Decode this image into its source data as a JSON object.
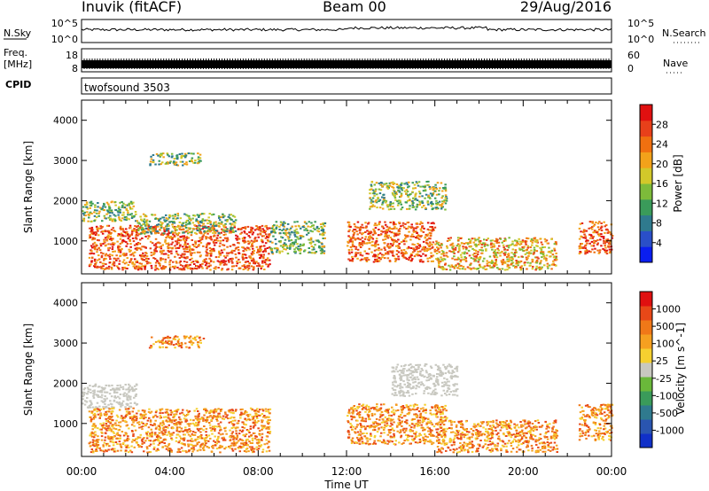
{
  "header": {
    "site": "Inuvik (fitACF)",
    "beam": "Beam 00",
    "date": "29/Aug/2016"
  },
  "noise_panel": {
    "left_label": "N.Sky",
    "right_label": "N.Search",
    "left_ticks": [
      "10^5",
      "10^0"
    ],
    "right_ticks": [
      "10^5",
      "10^0"
    ]
  },
  "freq_panel": {
    "left_label_1": "Freq.",
    "left_label_2": "[MHz]",
    "left_ticks": [
      "18",
      "8"
    ],
    "right_ticks": [
      "60",
      "0"
    ],
    "right_label": "Nave"
  },
  "cpid": {
    "label": "CPID",
    "value": "twofsound  3503"
  },
  "x_axis": {
    "label": "Time UT",
    "ticks": [
      "00:00",
      "04:00",
      "08:00",
      "12:00",
      "16:00",
      "20:00",
      "00:00"
    ]
  },
  "chart_data": [
    {
      "type": "heatmap",
      "title": "",
      "ylabel": "Slant Range [km]",
      "yticks": [
        "4000",
        "3000",
        "2000",
        "1000"
      ],
      "xlim_hours": [
        0,
        24
      ],
      "ylim_km": [
        180,
        4500
      ],
      "colorbar": {
        "label": "Power [dB]",
        "ticks": [
          "28",
          "24",
          "20",
          "16",
          "12",
          "8",
          "4"
        ],
        "colors": [
          "#0a1ef0",
          "#2a4fc8",
          "#2f7a8e",
          "#3a9b5a",
          "#7dbb3a",
          "#d2c82a",
          "#f2a21a",
          "#f07010",
          "#e8401a",
          "#e01010"
        ]
      },
      "echo_regions": [
        {
          "time": [
            0.0,
            2.5
          ],
          "range_km": [
            1500,
            2000
          ],
          "level": "medium"
        },
        {
          "time": [
            0.3,
            8.5
          ],
          "range_km": [
            300,
            1400
          ],
          "level": "high"
        },
        {
          "time": [
            2.5,
            7.0
          ],
          "range_km": [
            1200,
            1700
          ],
          "level": "medium"
        },
        {
          "time": [
            3.0,
            5.5
          ],
          "range_km": [
            2900,
            3200
          ],
          "level": "medium"
        },
        {
          "time": [
            8.5,
            11.0
          ],
          "range_km": [
            700,
            1500
          ],
          "level": "medium"
        },
        {
          "time": [
            12.0,
            16.0
          ],
          "range_km": [
            500,
            1500
          ],
          "level": "high"
        },
        {
          "time": [
            13.0,
            16.5
          ],
          "range_km": [
            1800,
            2500
          ],
          "level": "medium"
        },
        {
          "time": [
            16.0,
            21.5
          ],
          "range_km": [
            300,
            1100
          ],
          "level": "medium-high"
        },
        {
          "time": [
            22.5,
            24.0
          ],
          "range_km": [
            700,
            1500
          ],
          "level": "high"
        }
      ]
    },
    {
      "type": "heatmap",
      "title": "",
      "ylabel": "Slant Range [km]",
      "yticks": [
        "4000",
        "3000",
        "2000",
        "1000"
      ],
      "xlim_hours": [
        0,
        24
      ],
      "ylim_km": [
        180,
        4500
      ],
      "colorbar": {
        "label": "Velocity [m s^-1]",
        "ticks": [
          "1000",
          "500",
          "100",
          "25",
          "-25",
          "-100",
          "-500",
          "-1000"
        ],
        "colors": [
          "#1030c8",
          "#2a55b0",
          "#2f7a8e",
          "#3a9b5a",
          "#6ab83a",
          "#c8c8c0",
          "#f5d030",
          "#f5a020",
          "#f07818",
          "#e84818",
          "#e01010"
        ]
      },
      "echo_regions": [
        {
          "time": [
            0.0,
            2.5
          ],
          "range_km": [
            1400,
            2000
          ],
          "level": "ground-scatter"
        },
        {
          "time": [
            0.3,
            8.5
          ],
          "range_km": [
            300,
            1400
          ],
          "level": "negative"
        },
        {
          "time": [
            3.0,
            5.5
          ],
          "range_km": [
            2900,
            3200
          ],
          "level": "negative"
        },
        {
          "time": [
            12.0,
            16.5
          ],
          "range_km": [
            500,
            1500
          ],
          "level": "negative"
        },
        {
          "time": [
            14.0,
            17.0
          ],
          "range_km": [
            1700,
            2500
          ],
          "level": "ground-scatter"
        },
        {
          "time": [
            16.0,
            21.5
          ],
          "range_km": [
            300,
            1100
          ],
          "level": "negative"
        },
        {
          "time": [
            22.5,
            24.0
          ],
          "range_km": [
            600,
            1500
          ],
          "level": "negative"
        }
      ]
    }
  ]
}
